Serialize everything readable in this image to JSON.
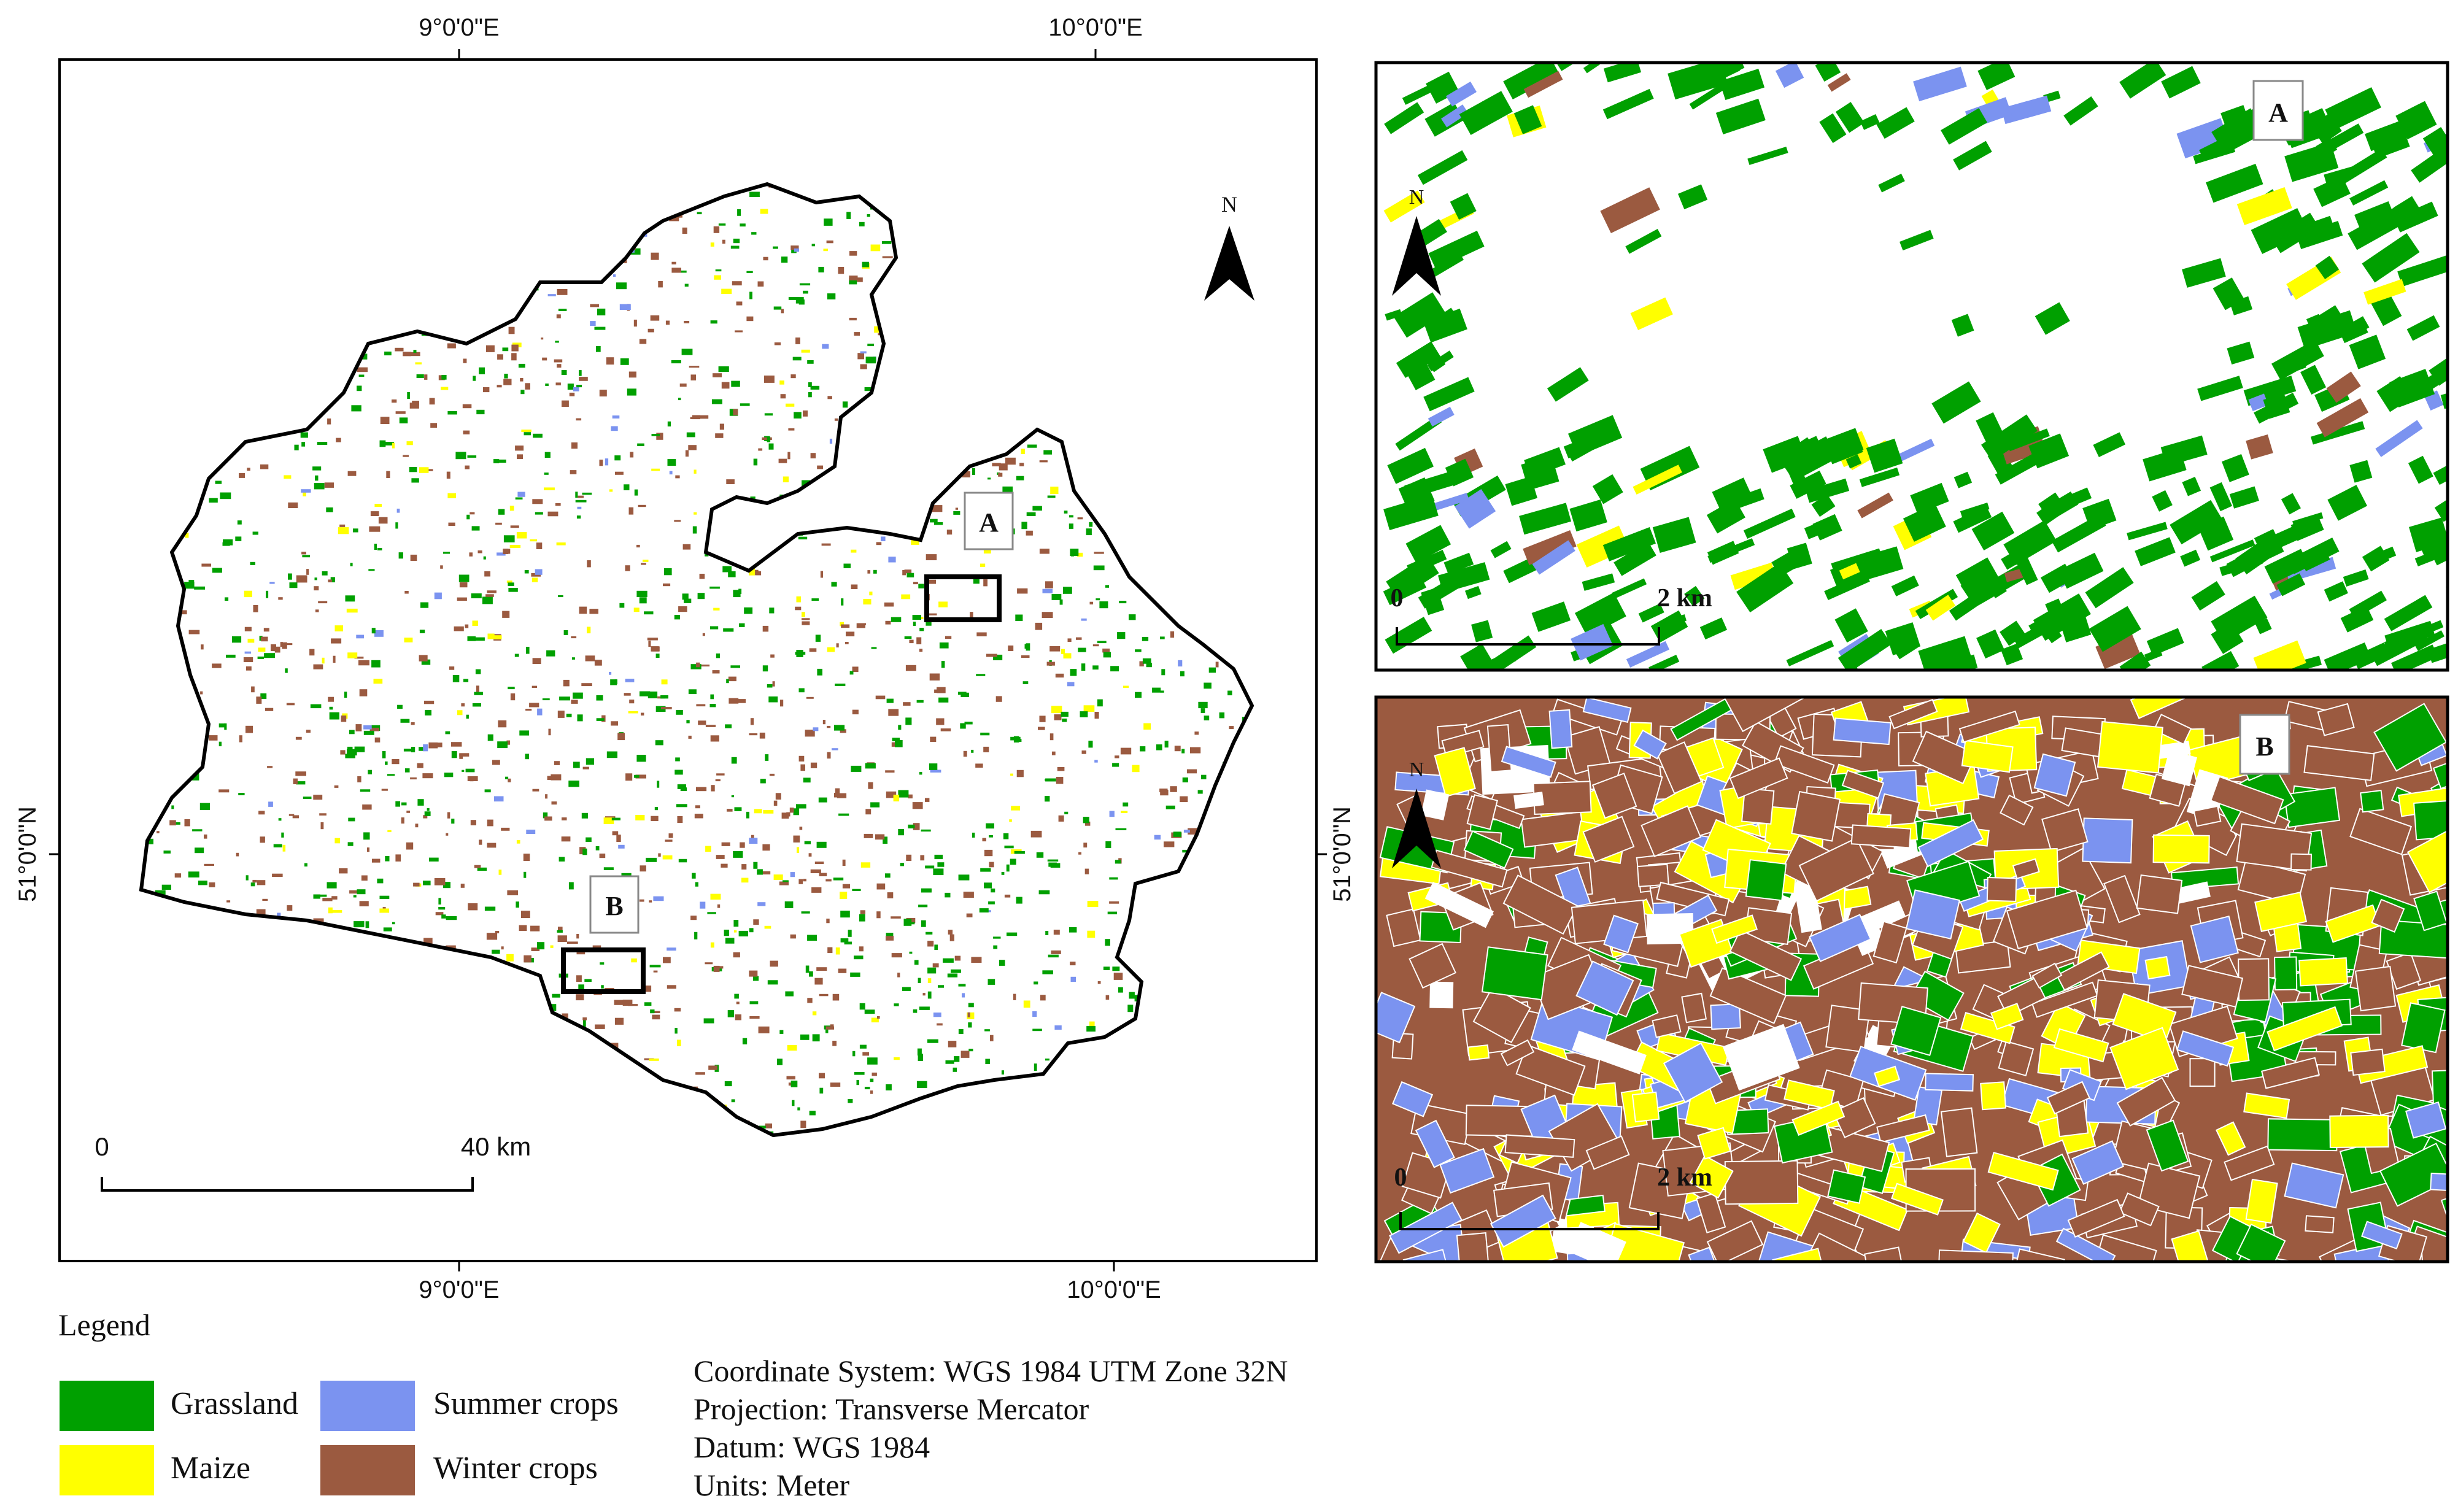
{
  "main_map": {
    "lon_label_left": "9°0'0\"E",
    "lon_label_right_top": "10°0'0\"E",
    "lon_label_right_bottom": "10°0'0\"E",
    "lat_label": "51°0'0\"N",
    "north": "N",
    "scale_zero": "0",
    "scale_end": "40 km",
    "box_a": "A",
    "box_b": "B"
  },
  "inset_a": {
    "label": "A",
    "north": "N",
    "scale_zero": "0",
    "scale_end": "2 km"
  },
  "inset_b": {
    "label": "B",
    "north": "N",
    "scale_zero": "0",
    "scale_end": "2 km",
    "lat_label": "51°0'0\"N"
  },
  "legend": {
    "title": "Legend",
    "items": [
      {
        "label": "Grassland",
        "color": "#00a000"
      },
      {
        "label": "Summer crops",
        "color": "#7b93f0"
      },
      {
        "label": "Maize",
        "color": "#ffff00"
      },
      {
        "label": "Winter crops",
        "color": "#9b5a40"
      }
    ]
  },
  "info": {
    "coordinate_system": "Coordinate System: WGS 1984 UTM Zone 32N",
    "projection": "Projection: Transverse Mercator",
    "datum": "Datum: WGS 1984",
    "units": "Units: Meter"
  }
}
